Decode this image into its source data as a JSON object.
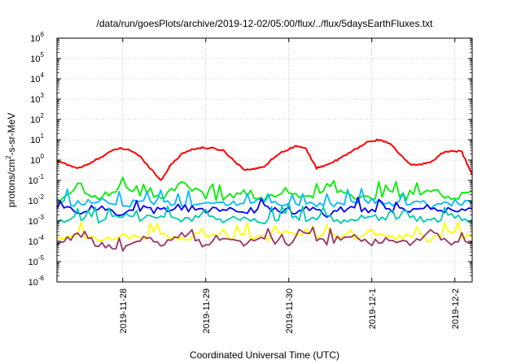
{
  "chart_data": {
    "type": "line",
    "title": "/data/run/goesPlots/archive/2019-12-02/05:00/flux/../flux/5daysEarthFluxes.txt",
    "xlabel": "Coordinated Universal Time (UTC)",
    "ylabel": {
      "base": "protons/cm",
      "sup": "2",
      "rest": "-s-sr-MeV"
    },
    "yscale": "log",
    "ylim_exp": [
      -6,
      6
    ],
    "y_ticks": [
      {
        "base": "10",
        "exp": "-6"
      },
      {
        "base": "10",
        "exp": "-5"
      },
      {
        "base": "10",
        "exp": "-4"
      },
      {
        "base": "10",
        "exp": "-3"
      },
      {
        "base": "10",
        "exp": "-2"
      },
      {
        "base": "10",
        "exp": "-1"
      },
      {
        "base": "10",
        "exp": "0"
      },
      {
        "base": "10",
        "exp": "1"
      },
      {
        "base": "10",
        "exp": "2"
      },
      {
        "base": "10",
        "exp": "3"
      },
      {
        "base": "10",
        "exp": "4"
      },
      {
        "base": "10",
        "exp": "5"
      },
      {
        "base": "10",
        "exp": "6"
      }
    ],
    "xlim": [
      "2019-11-27 05:00",
      "2019-12-02 05:00"
    ],
    "x_ticks": [
      "2019-11-28",
      "2019-11-29",
      "2019-11-30",
      "2019-12-1",
      "2019-12-2"
    ],
    "grid": true,
    "legend": "none",
    "series": [
      {
        "color": "#ff0000",
        "x": [
          "11-27 05:00",
          "11-27 08:00",
          "11-27 11:00",
          "11-27 14:00",
          "11-27 17:00",
          "11-27 20:00",
          "11-27 23:00",
          "11-28 02:00",
          "11-28 05:00",
          "11-28 08:00",
          "11-28 11:00",
          "11-28 14:00",
          "11-28 17:00",
          "11-28 20:00",
          "11-28 23:00",
          "11-29 02:00",
          "11-29 05:00",
          "11-29 08:00",
          "11-29 11:00",
          "11-29 14:00",
          "11-29 17:00",
          "11-29 20:00",
          "11-29 23:00",
          "11-30 02:00",
          "11-30 05:00",
          "11-30 08:00",
          "11-30 11:00",
          "11-30 14:00",
          "11-30 17:00",
          "11-30 20:00",
          "11-30 23:00",
          "12-01 02:00",
          "12-01 05:00",
          "12-01 08:00",
          "12-01 11:00",
          "12-01 14:00",
          "12-01 17:00",
          "12-01 20:00",
          "12-01 23:00",
          "12-02 02:00",
          "12-02 05:00"
        ],
        "y": [
          0.9,
          0.6,
          0.4,
          0.6,
          1.2,
          2.4,
          3.8,
          3.2,
          1.5,
          0.4,
          0.1,
          0.6,
          2.0,
          3.4,
          4.0,
          3.8,
          3.0,
          1.0,
          0.35,
          0.35,
          0.5,
          1.5,
          3.0,
          5.0,
          3.5,
          0.4,
          0.6,
          1.0,
          2.0,
          4.0,
          8.0,
          10.0,
          7.0,
          2.0,
          0.6,
          0.6,
          0.8,
          2.0,
          3.0,
          2.5,
          0.2
        ]
      },
      {
        "color": "#00ee00",
        "x": [
          "11-27 05:00",
          "11-27 11:00",
          "11-27 17:00",
          "11-27 23:00",
          "11-28 05:00",
          "11-28 11:00",
          "11-28 17:00",
          "11-28 23:00",
          "11-29 05:00",
          "11-29 11:00",
          "11-29 17:00",
          "11-29 23:00",
          "11-30 05:00",
          "11-30 11:00",
          "11-30 17:00",
          "11-30 23:00",
          "12-01 05:00",
          "12-01 11:00",
          "12-01 17:00",
          "12-01 23:00",
          "12-02 05:00"
        ],
        "y": [
          0.012,
          0.03,
          0.012,
          0.05,
          0.02,
          0.012,
          0.06,
          0.02,
          0.012,
          0.03,
          0.012,
          0.04,
          0.012,
          0.05,
          0.02,
          0.012,
          0.03,
          0.012,
          0.04,
          0.012,
          0.03
        ]
      },
      {
        "color": "#00bbff",
        "x": [
          "11-27 05:00",
          "11-27 11:00",
          "11-27 17:00",
          "11-27 23:00",
          "11-28 05:00",
          "11-28 11:00",
          "11-28 17:00",
          "11-28 23:00",
          "11-29 05:00",
          "11-29 11:00",
          "11-29 17:00",
          "11-29 23:00",
          "11-30 05:00",
          "11-30 11:00",
          "11-30 17:00",
          "11-30 23:00",
          "12-01 05:00",
          "12-01 11:00",
          "12-01 17:00",
          "12-01 23:00",
          "12-02 05:00"
        ],
        "y": [
          0.009,
          0.007,
          0.012,
          0.006,
          0.008,
          0.01,
          0.007,
          0.009,
          0.006,
          0.008,
          0.011,
          0.007,
          0.009,
          0.006,
          0.008,
          0.01,
          0.007,
          0.009,
          0.006,
          0.008,
          0.007
        ]
      },
      {
        "color": "#0000ff",
        "x": [
          "11-27 05:00",
          "11-27 11:00",
          "11-27 17:00",
          "11-27 23:00",
          "11-28 05:00",
          "11-28 11:00",
          "11-28 17:00",
          "11-28 23:00",
          "11-29 05:00",
          "11-29 11:00",
          "11-29 17:00",
          "11-29 23:00",
          "11-30 05:00",
          "11-30 11:00",
          "11-30 17:00",
          "11-30 23:00",
          "12-01 05:00",
          "12-01 11:00",
          "12-01 17:00",
          "12-01 23:00",
          "12-02 05:00"
        ],
        "y": [
          0.004,
          0.003,
          0.005,
          0.002,
          0.004,
          0.003,
          0.005,
          0.003,
          0.004,
          0.0025,
          0.005,
          0.003,
          0.004,
          0.002,
          0.0045,
          0.003,
          0.004,
          0.003,
          0.005,
          0.003,
          0.004
        ]
      },
      {
        "color": "#00ccaa",
        "x": [
          "11-27 05:00",
          "11-27 11:00",
          "11-27 17:00",
          "11-27 23:00",
          "11-28 05:00",
          "11-28 11:00",
          "11-28 17:00",
          "11-28 23:00",
          "11-29 05:00",
          "11-29 11:00",
          "11-29 17:00",
          "11-29 23:00",
          "11-30 05:00",
          "11-30 11:00",
          "11-30 17:00",
          "11-30 23:00",
          "12-01 05:00",
          "12-01 11:00",
          "12-01 17:00",
          "12-01 23:00",
          "12-02 05:00"
        ],
        "y": [
          0.0012,
          0.0015,
          0.001,
          0.002,
          0.0012,
          0.0015,
          0.001,
          0.0018,
          0.0012,
          0.0015,
          0.001,
          0.002,
          0.0013,
          0.0015,
          0.001,
          0.0018,
          0.0012,
          0.0015,
          0.001,
          0.0016,
          0.0012
        ]
      },
      {
        "color": "#ffff00",
        "x": [
          "11-27 05:00",
          "11-27 11:00",
          "11-27 17:00",
          "11-27 23:00",
          "11-28 05:00",
          "11-28 11:00",
          "11-28 17:00",
          "11-28 23:00",
          "11-29 05:00",
          "11-29 11:00",
          "11-29 17:00",
          "11-29 23:00",
          "11-30 05:00",
          "11-30 11:00",
          "11-30 17:00",
          "11-30 23:00",
          "12-01 05:00",
          "12-01 11:00",
          "12-01 17:00",
          "12-01 23:00",
          "12-02 05:00"
        ],
        "y": [
          0.00015,
          0.0003,
          0.00012,
          0.0002,
          0.00015,
          0.00025,
          0.00012,
          0.0003,
          0.00014,
          0.0002,
          0.00013,
          0.0003,
          0.00015,
          0.00022,
          0.00012,
          0.0003,
          0.00014,
          0.0002,
          0.00012,
          0.00025,
          0.00015
        ]
      },
      {
        "color": "#993366",
        "x": [
          "11-27 05:00",
          "11-27 11:00",
          "11-27 17:00",
          "11-27 23:00",
          "11-28 05:00",
          "11-28 11:00",
          "11-28 17:00",
          "11-28 23:00",
          "11-29 05:00",
          "11-29 11:00",
          "11-29 17:00",
          "11-29 23:00",
          "11-30 05:00",
          "11-30 11:00",
          "11-30 17:00",
          "11-30 23:00",
          "12-01 05:00",
          "12-01 11:00",
          "12-01 17:00",
          "12-01 23:00",
          "12-02 05:00"
        ],
        "y": [
          8e-05,
          0.0002,
          7e-05,
          4e-05,
          0.00015,
          8e-05,
          0.00025,
          7e-05,
          0.0002,
          8e-05,
          0.00015,
          7e-05,
          0.00025,
          8e-05,
          0.0002,
          7e-05,
          0.00015,
          8e-05,
          0.00025,
          7e-05,
          9e-05
        ]
      }
    ]
  }
}
